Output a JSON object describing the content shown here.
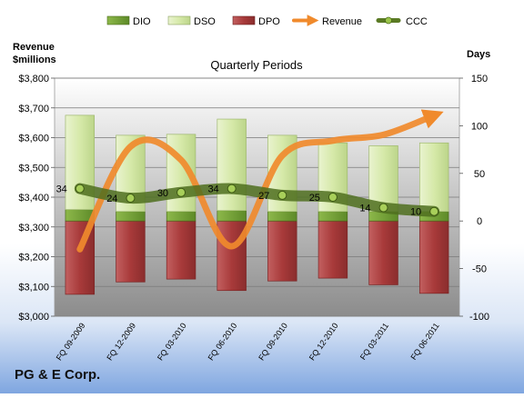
{
  "chart_data": {
    "type": "bar",
    "title": "Quarterly Periods",
    "categories": [
      "FQ 09-2009",
      "FQ 12-2009",
      "FQ 03-2010",
      "FQ 06-2010",
      "FQ 09-2010",
      "FQ 12-2010",
      "FQ 03-2011",
      "FQ 06-2011"
    ],
    "left_axis": {
      "label_line1": "Revenue",
      "label_line2": "$millions",
      "range": [
        3000,
        3800
      ],
      "ticks": [
        3000,
        3100,
        3200,
        3300,
        3400,
        3500,
        3600,
        3700,
        3800
      ],
      "tick_labels": [
        "$3,000",
        "$3,100",
        "$3,200",
        "$3,300",
        "$3,400",
        "$3,500",
        "$3,600",
        "$3,700",
        "$3,800"
      ]
    },
    "right_axis": {
      "label": "Days",
      "range": [
        -100,
        150
      ],
      "ticks": [
        -100,
        -50,
        0,
        50,
        100,
        150
      ],
      "tick_labels": [
        "-100",
        "-50",
        "0",
        "50",
        "100",
        "150"
      ]
    },
    "series": [
      {
        "name": "DIO",
        "kind": "bar-stack",
        "axis": "right",
        "color": "#6f9a2f",
        "values": [
          12,
          10,
          10,
          11,
          10,
          10,
          10,
          10
        ]
      },
      {
        "name": "DSO",
        "kind": "bar-stack",
        "axis": "right",
        "color": "#d3e6a8",
        "values": [
          99,
          80,
          81,
          96,
          80,
          72,
          69,
          72
        ]
      },
      {
        "name": "DPO",
        "kind": "bar-negative",
        "axis": "right",
        "color": "#a83a3a",
        "values": [
          -77,
          -64,
          -61,
          -73,
          -63,
          -60,
          -67,
          -76
        ]
      },
      {
        "name": "Revenue",
        "kind": "line",
        "axis": "left",
        "color": "#f08a2c",
        "values": [
          3225,
          3570,
          3525,
          3235,
          3540,
          3590,
          3610,
          3675
        ]
      },
      {
        "name": "CCC",
        "kind": "line",
        "axis": "right",
        "color": "#5a7a24",
        "values": [
          34,
          24,
          30,
          34,
          27,
          25,
          14,
          10
        ]
      }
    ],
    "data_labels": [
      "34",
      "24",
      "30",
      "34",
      "27",
      "25",
      "14",
      "10"
    ],
    "grid": true,
    "legend_position": "top"
  },
  "company_name": "PG & E Corp."
}
